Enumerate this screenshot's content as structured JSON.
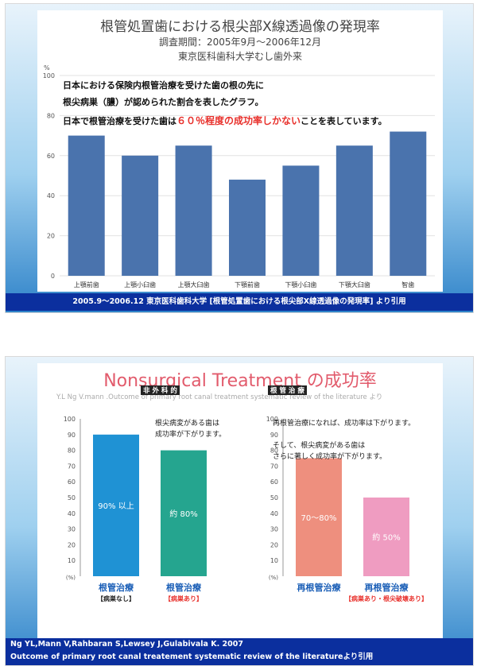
{
  "slide1": {
    "title": "根管処置歯における根尖部X線透過像の発現率",
    "period": "調査期間：2005年9月～2006年12月",
    "institution": "東京医科歯科大学むし歯外来",
    "note_line1": "日本における保険内根管治療を受けた歯の根の先に",
    "note_line2": "根尖病巣（膿）が認められた割合を表したグラフ。",
    "note_line3_a": "日本で根管治療を受けた歯は",
    "note_line3_b": "６０％程度の成功率しかない",
    "note_line3_c": "ことを表しています。",
    "footer": "2005.9～2006.12 東京医科歯科大学 [根管処置歯における根尖部X線透過像の発現率] より引用"
  },
  "slide2": {
    "title": "Nonsurgical Treatment の成功率",
    "subtitle": "Y.L Ng V.mann .Outcome of primary root canal treatment systematic review of the literature より",
    "tag_left": "非 外 科 的",
    "tag_right": "根 管 治 療",
    "left_note_1": "根尖病変がある歯は",
    "left_note_2": "成功率が下がります。",
    "right_note_1": "再根管治療になれば、成功率は下がります。",
    "right_note_2": "そして、根尖病変がある歯は",
    "right_note_3": "さらに著しく成功率が下がります。",
    "bar_label_1": "90% 以上",
    "bar_label_2": "約 80%",
    "bar_label_3": "70～80%",
    "bar_label_4": "約 50%",
    "cat1_main": "根管治療",
    "cat1_sub": "【病巣なし】",
    "cat2_main": "根管治療",
    "cat2_sub": "【病巣あり】",
    "cat3_main": "再根管治療",
    "cat4_main": "再根管治療",
    "cat4_sub": "【病巣あり・根尖破壊あり】",
    "unit": "(%)",
    "footer_line1": "Ng YL,Mann V,Rahbaran S,Lewsey J,Gulabivala K. 2007",
    "footer_line2": "Outcome of primary root canal treatement systematic review of the literatureより引用"
  },
  "chart_data": [
    {
      "type": "bar",
      "title": "根管処置歯における根尖部X線透過像の発現率",
      "ylabel": "%",
      "categories": [
        "上顎前歯",
        "上顎小臼歯",
        "上顎大臼歯",
        "下顎前歯",
        "下顎小臼歯",
        "下顎大臼歯",
        "智歯"
      ],
      "values": [
        70,
        60,
        65,
        48,
        55,
        65,
        72
      ],
      "yticks": [
        0,
        20,
        40,
        60,
        80,
        100
      ],
      "ylim": [
        0,
        100
      ],
      "grid": true,
      "color": "#4a73ad"
    },
    {
      "type": "bar",
      "categories": [
        "根管治療【病巣なし】",
        "根管治療【病巣あり】"
      ],
      "values": [
        90,
        80
      ],
      "yticks": [
        0,
        10,
        20,
        30,
        40,
        50,
        60,
        70,
        80,
        90,
        100
      ],
      "ylim": [
        0,
        100
      ],
      "colors": [
        "#1f92d4",
        "#25a58f"
      ]
    },
    {
      "type": "bar",
      "categories": [
        "再根管治療",
        "再根管治療【病巣あり・根尖破壊あり】"
      ],
      "values": [
        75,
        50
      ],
      "yticks": [
        0,
        10,
        20,
        30,
        40,
        50,
        60,
        70,
        80,
        90,
        100
      ],
      "ylim": [
        0,
        100
      ],
      "colors": [
        "#ee8f7e",
        "#ef9cc1"
      ]
    }
  ]
}
